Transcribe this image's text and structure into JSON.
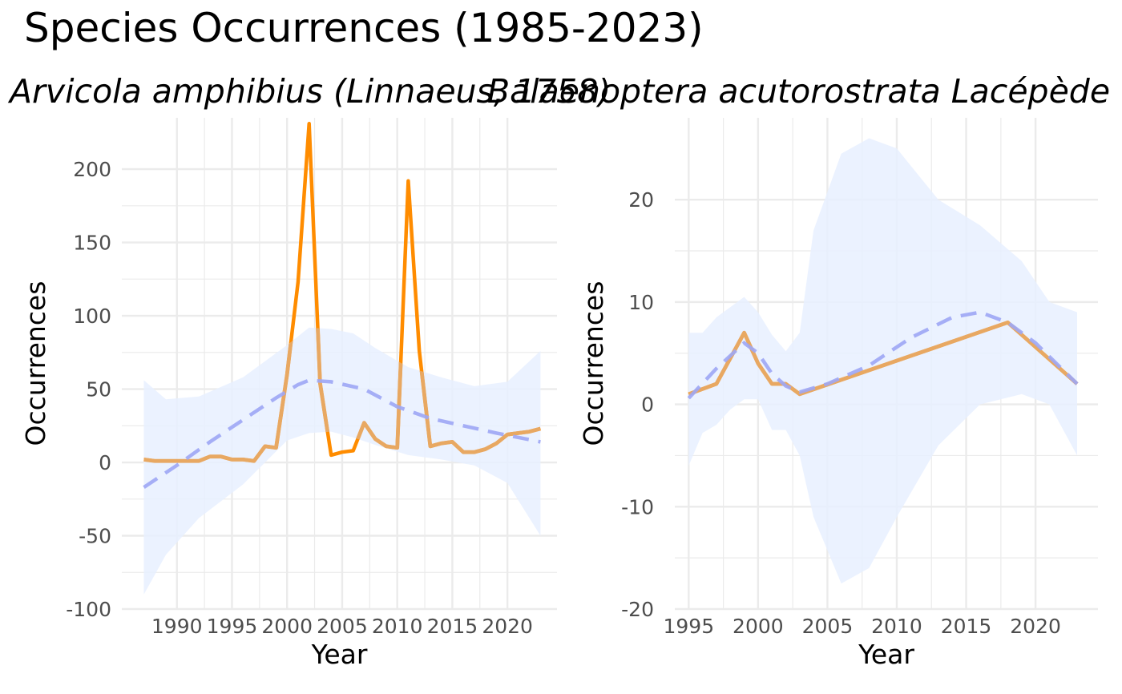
{
  "title": "Species Occurrences (1985-2023)",
  "colors": {
    "observed_line": "#FF8C00",
    "observed_line_overlap": "#E8A862",
    "trend_line": "#9DA6F5",
    "confidence_band": "#E8F0FF",
    "grid": "#EBEBEB",
    "axis_text": "#4D4D4D"
  },
  "chart_data": [
    {
      "type": "line",
      "title": "Arvicola amphibius (Linnaeus, 1758)",
      "xlabel": "Year",
      "ylabel": "Occurrences",
      "xlim": [
        1985,
        2024.5
      ],
      "ylim": [
        -100,
        235
      ],
      "x_ticks": [
        1990,
        1995,
        2000,
        2005,
        2010,
        2015,
        2020
      ],
      "y_ticks": [
        -100,
        -50,
        0,
        50,
        100,
        150,
        200
      ],
      "x_tick_labels": [
        "1990",
        "1995",
        "2000",
        "2005",
        "2010",
        "2015",
        "2020"
      ],
      "y_tick_labels": [
        "-100",
        "-50",
        "0",
        "50",
        "100",
        "150",
        "200"
      ],
      "grid": true,
      "series": [
        {
          "kind": "observed",
          "x": [
            1987,
            1988,
            1989,
            1990,
            1991,
            1992,
            1993,
            1994,
            1995,
            1996,
            1997,
            1998,
            1999,
            2000,
            2001,
            2002,
            2003,
            2004,
            2005,
            2006,
            2007,
            2008,
            2009,
            2010,
            2011,
            2012,
            2013,
            2014,
            2015,
            2016,
            2017,
            2018,
            2019,
            2020,
            2021,
            2022,
            2023
          ],
          "y": [
            2,
            1,
            1,
            1,
            1,
            1,
            4,
            4,
            2,
            2,
            1,
            11,
            10,
            60,
            123,
            231,
            54,
            5,
            7,
            8,
            27,
            16,
            11,
            10,
            192,
            76,
            11,
            13,
            14,
            7,
            7,
            9,
            13,
            19,
            20,
            21,
            23
          ]
        },
        {
          "kind": "trend",
          "x": [
            1987,
            1990,
            1993,
            1996,
            1999,
            2001,
            2002,
            2004,
            2007,
            2010,
            2013,
            2016,
            2019,
            2023
          ],
          "y": [
            -17,
            -2,
            14,
            29,
            44,
            53,
            56,
            55,
            50,
            38,
            30,
            25,
            20,
            14
          ]
        }
      ],
      "band": {
        "x": [
          1987,
          1989,
          1992,
          1996,
          2000,
          2002,
          2004,
          2006,
          2008,
          2011,
          2014,
          2017,
          2020,
          2023
        ],
        "lower": [
          -90,
          -63,
          -38,
          -15,
          15,
          20,
          21,
          17,
          12,
          5,
          2,
          -2,
          -14,
          -50
        ],
        "upper": [
          56,
          43,
          45,
          58,
          80,
          92,
          91,
          88,
          78,
          65,
          58,
          52,
          55,
          76
        ]
      }
    },
    {
      "type": "line",
      "title": "Balaenoptera acutorostrata Lacépède",
      "xlabel": "Year",
      "ylabel": "Occurrences",
      "xlim": [
        1994,
        2024.5
      ],
      "ylim": [
        -20,
        28
      ],
      "x_ticks": [
        1995,
        2000,
        2005,
        2010,
        2015,
        2020
      ],
      "y_ticks": [
        -20,
        -10,
        0,
        10,
        20
      ],
      "x_tick_labels": [
        "1995",
        "2000",
        "2005",
        "2010",
        "2015",
        "2020"
      ],
      "y_tick_labels": [
        "-20",
        "-10",
        "0",
        "10",
        "20"
      ],
      "grid": true,
      "series": [
        {
          "kind": "observed",
          "x": [
            1995,
            1997,
            1999,
            2000,
            2001,
            2002,
            2003,
            2018,
            2023
          ],
          "y": [
            1,
            2,
            7,
            4,
            2,
            2,
            1,
            8,
            2
          ]
        },
        {
          "kind": "trend",
          "x": [
            1995,
            1997,
            1999,
            2000,
            2001,
            2002,
            2003,
            2005,
            2008,
            2011,
            2014,
            2016,
            2018,
            2020,
            2023
          ],
          "y": [
            0.6,
            3.5,
            6,
            5,
            3,
            1.8,
            1.2,
            2,
            3.8,
            6.5,
            8.5,
            9,
            8,
            6,
            2
          ]
        }
      ],
      "band": {
        "x": [
          1995,
          1996,
          1997,
          1998,
          1999,
          2000,
          2001,
          2002,
          2003,
          2004,
          2006,
          2008,
          2010,
          2013,
          2016,
          2019,
          2021,
          2023
        ],
        "lower": [
          -6,
          -2.8,
          -2,
          -0.5,
          0.5,
          0.5,
          -2.5,
          -2.5,
          -5,
          -11,
          -17.5,
          -16,
          -11,
          -4,
          0,
          1,
          0,
          -5
        ],
        "upper": [
          7,
          7,
          8.5,
          9.5,
          10.5,
          9,
          6.8,
          5.2,
          7,
          17,
          24.5,
          26,
          25,
          20,
          17.5,
          14,
          10,
          9
        ]
      }
    }
  ]
}
